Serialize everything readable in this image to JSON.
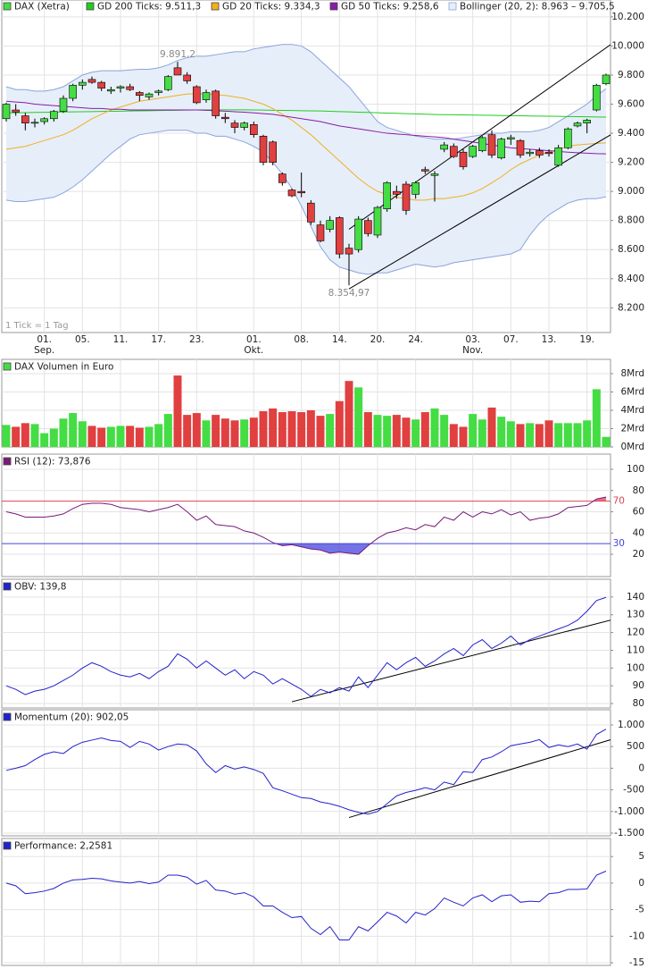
{
  "chart_data": [
    {
      "type": "candlestick",
      "name": "DAX (Xetra)",
      "up_color": "#44dd44",
      "down_color": "#e04040",
      "footnote": "1 Tick = 1 Tag",
      "categories": [
        null,
        null,
        null,
        null,
        "01.",
        null,
        null,
        null,
        "05.",
        null,
        null,
        null,
        "11.",
        null,
        null,
        null,
        "17.",
        null,
        null,
        null,
        "23.",
        null,
        null,
        null,
        null,
        null,
        "01.",
        null,
        null,
        null,
        null,
        "08.",
        null,
        null,
        null,
        "14.",
        null,
        null,
        null,
        "20.",
        null,
        null,
        null,
        "24.",
        null,
        null,
        null,
        null,
        null,
        "03.",
        null,
        null,
        null,
        "07.",
        null,
        null,
        null,
        "13.",
        null,
        null,
        null,
        "19.",
        null,
        null
      ],
      "month_labels": [
        {
          "category_index": 4,
          "label": "Sep."
        },
        {
          "category_index": 26,
          "label": "Okt."
        },
        {
          "category_index": 49,
          "label": "Nov."
        }
      ],
      "open": [
        9500,
        9560,
        9520,
        9470,
        9480,
        9500,
        9550,
        9640,
        9730,
        9770,
        9750,
        9690,
        9710,
        9720,
        9680,
        9650,
        9680,
        9700,
        9850,
        9800,
        9720,
        9630,
        9690,
        9510,
        9470,
        9440,
        9460,
        9380,
        9340,
        9120,
        9010,
        9000,
        8920,
        8770,
        8740,
        8820,
        8610,
        8600,
        8800,
        8700,
        8880,
        9000,
        9050,
        8980,
        9150,
        9110,
        9290,
        9310,
        9270,
        9240,
        9280,
        9390,
        9230,
        9360,
        9350,
        9260,
        9280,
        9270,
        9180,
        9300,
        9450,
        9470,
        9560,
        9740
      ],
      "high": [
        9610,
        9600,
        9540,
        9500,
        9510,
        9560,
        9660,
        9740,
        9770,
        9790,
        9760,
        9720,
        9730,
        9740,
        9690,
        9680,
        9700,
        9800,
        9891.2,
        9820,
        9730,
        9700,
        9700,
        9540,
        9490,
        9480,
        9480,
        9390,
        9350,
        9130,
        9020,
        9130,
        8940,
        8800,
        8830,
        8830,
        8640,
        8830,
        8820,
        8900,
        9070,
        9040,
        9070,
        9070,
        9170,
        9140,
        9340,
        9330,
        9290,
        9320,
        9380,
        9420,
        9370,
        9390,
        9360,
        9290,
        9300,
        9290,
        9320,
        9440,
        9480,
        9500,
        9740,
        9810
      ],
      "low": [
        9480,
        9520,
        9420,
        9440,
        9460,
        9480,
        9540,
        9620,
        9700,
        9740,
        9690,
        9670,
        9680,
        9690,
        9620,
        9630,
        9660,
        9690,
        9800,
        9740,
        9600,
        9610,
        9500,
        9470,
        9400,
        9420,
        9370,
        9180,
        9180,
        9040,
        8960,
        8960,
        8770,
        8650,
        8720,
        8540,
        8354.97,
        8580,
        8690,
        8680,
        8860,
        8950,
        8840,
        8950,
        9120,
        8930,
        9270,
        9230,
        9150,
        9230,
        9270,
        9230,
        9220,
        9320,
        9230,
        9240,
        9230,
        9240,
        9170,
        9290,
        9440,
        9400,
        9550,
        9730
      ],
      "close": [
        9600,
        9545,
        9470,
        9475,
        9500,
        9550,
        9640,
        9730,
        9750,
        9750,
        9710,
        9700,
        9720,
        9700,
        9660,
        9670,
        9690,
        9790,
        9800,
        9760,
        9610,
        9680,
        9520,
        9500,
        9440,
        9470,
        9390,
        9200,
        9200,
        9060,
        8970,
        8990,
        8790,
        8660,
        8800,
        8570,
        8570,
        8810,
        8710,
        8890,
        9060,
        8980,
        8870,
        9060,
        9140,
        9120,
        9320,
        9240,
        9170,
        9310,
        9370,
        9250,
        9360,
        9370,
        9250,
        9270,
        9250,
        9260,
        9300,
        9430,
        9470,
        9490,
        9730,
        9800
      ],
      "series": [
        {
          "name": "GD 200 Ticks: 9.511,3",
          "color": "#22cc22",
          "values": [
            9540,
            9541,
            9542,
            9543,
            9544,
            9545,
            9546,
            9547,
            9548,
            9549,
            9550,
            9551,
            9552,
            9553,
            9554,
            9555,
            9556,
            9557,
            9558,
            9559,
            9560,
            9561,
            9561,
            9561,
            9561,
            9561,
            9560,
            9559,
            9558,
            9557,
            9556,
            9555,
            9554,
            9553,
            9551,
            9549,
            9547,
            9545,
            9543,
            9541,
            9539,
            9537,
            9535,
            9533,
            9531,
            9529,
            9528,
            9527,
            9526,
            9525,
            9524,
            9523,
            9522,
            9521,
            9520,
            9519,
            9518,
            9517,
            9516,
            9515,
            9514,
            9513,
            9512,
            9511.3
          ]
        },
        {
          "name": "GD 20 Ticks: 9.334,3",
          "color": "#f0b020",
          "values": [
            9290,
            9300,
            9310,
            9330,
            9350,
            9370,
            9390,
            9420,
            9460,
            9500,
            9530,
            9560,
            9580,
            9600,
            9620,
            9630,
            9640,
            9650,
            9660,
            9670,
            9670,
            9670,
            9665,
            9660,
            9650,
            9640,
            9620,
            9600,
            9570,
            9530,
            9490,
            9440,
            9390,
            9330,
            9270,
            9210,
            9150,
            9090,
            9040,
            9000,
            8980,
            8960,
            8950,
            8940,
            8940,
            8950,
            8950,
            8960,
            8970,
            8990,
            9020,
            9060,
            9100,
            9150,
            9190,
            9220,
            9250,
            9270,
            9290,
            9310,
            9320,
            9325,
            9330,
            9334.3
          ]
        },
        {
          "name": "GD 50 Ticks: 9.258,6",
          "color": "#8a1aa8",
          "values": [
            9620,
            9615,
            9610,
            9600,
            9595,
            9590,
            9585,
            9580,
            9575,
            9570,
            9570,
            9565,
            9565,
            9560,
            9560,
            9560,
            9560,
            9560,
            9560,
            9560,
            9560,
            9558,
            9555,
            9552,
            9548,
            9545,
            9540,
            9535,
            9530,
            9520,
            9510,
            9500,
            9490,
            9480,
            9465,
            9450,
            9440,
            9430,
            9420,
            9410,
            9400,
            9395,
            9390,
            9385,
            9380,
            9375,
            9370,
            9360,
            9350,
            9340,
            9330,
            9320,
            9310,
            9300,
            9295,
            9290,
            9285,
            9280,
            9275,
            9270,
            9266,
            9263,
            9260,
            9258.6
          ]
        }
      ],
      "bollinger": {
        "name": "Bollinger (20, 2): 8.963 – 9.705,5",
        "color": "#8aa4dc",
        "fill": "#e6eef9",
        "upper": [
          9720,
          9700,
          9700,
          9690,
          9690,
          9700,
          9720,
          9760,
          9800,
          9820,
          9830,
          9830,
          9830,
          9835,
          9840,
          9840,
          9850,
          9870,
          9900,
          9920,
          9930,
          9930,
          9940,
          9950,
          9960,
          9960,
          9980,
          9990,
          10000,
          10010,
          10010,
          10000,
          9960,
          9900,
          9840,
          9780,
          9720,
          9640,
          9560,
          9480,
          9440,
          9420,
          9400,
          9380,
          9370,
          9360,
          9360,
          9360,
          9370,
          9380,
          9390,
          9400,
          9400,
          9410,
          9410,
          9410,
          9420,
          9440,
          9480,
          9520,
          9560,
          9600,
          9660,
          9705.5
        ],
        "lower": [
          8940,
          8930,
          8930,
          8940,
          8950,
          8960,
          8990,
          9030,
          9080,
          9140,
          9200,
          9260,
          9310,
          9360,
          9390,
          9400,
          9410,
          9420,
          9420,
          9420,
          9400,
          9400,
          9380,
          9380,
          9360,
          9340,
          9310,
          9270,
          9200,
          9120,
          9020,
          8900,
          8760,
          8620,
          8530,
          8480,
          8460,
          8440,
          8430,
          8440,
          8440,
          8460,
          8480,
          8500,
          8490,
          8480,
          8490,
          8510,
          8520,
          8530,
          8540,
          8550,
          8560,
          8570,
          8600,
          8700,
          8780,
          8840,
          8880,
          8920,
          8940,
          8950,
          8950,
          8963
        ]
      },
      "trendlines": [
        {
          "x": [
            36,
            63.5
          ],
          "y": [
            8740,
            10010
          ]
        },
        {
          "x": [
            36,
            63.5
          ],
          "y": [
            8330,
            9390
          ]
        }
      ],
      "annotations": [
        {
          "category_index": 18,
          "value": 9891.2,
          "label": "9.891,2"
        },
        {
          "category_index": 36,
          "value": 8354.97,
          "label": "8.354,97"
        }
      ],
      "ylim": [
        8030,
        10316
      ],
      "yticks": [
        {
          "value": 8200,
          "label": "8.200"
        },
        {
          "value": 8400,
          "label": "8.400"
        },
        {
          "value": 8600,
          "label": "8.600"
        },
        {
          "value": 8800,
          "label": "8.800"
        },
        {
          "value": 9000,
          "label": "9.000"
        },
        {
          "value": 9200,
          "label": "9.200"
        },
        {
          "value": 9400,
          "label": "9.400"
        },
        {
          "value": 9600,
          "label": "9.600"
        },
        {
          "value": 9800,
          "label": "9.800"
        },
        {
          "value": 10000,
          "label": "10.000"
        },
        {
          "value": 10200,
          "label": "10.200"
        }
      ],
      "grid": true
    },
    {
      "type": "bar",
      "title": "DAX Volumen in Euro",
      "color": "#44dd44",
      "values": [
        2.4,
        2.2,
        2.6,
        2.5,
        1.5,
        2.0,
        3.1,
        3.7,
        2.8,
        2.3,
        2.1,
        2.2,
        2.3,
        2.3,
        2.1,
        2.2,
        2.5,
        3.6,
        7.8,
        3.5,
        3.7,
        2.9,
        3.5,
        3.1,
        2.9,
        3.0,
        3.2,
        3.9,
        4.2,
        3.8,
        3.9,
        3.8,
        4.0,
        3.4,
        3.6,
        5.0,
        7.2,
        6.5,
        3.8,
        3.5,
        3.4,
        3.5,
        3.2,
        3.0,
        3.8,
        4.2,
        3.5,
        2.5,
        2.2,
        3.6,
        3.0,
        4.3,
        3.3,
        2.8,
        2.5,
        2.6,
        2.5,
        2.9,
        2.6,
        2.6,
        2.6,
        2.9,
        6.3,
        1.1
      ],
      "ylim": [
        0,
        9.56
      ],
      "yticks": [
        {
          "value": 0,
          "label": "0Mrd"
        },
        {
          "value": 2,
          "label": "2Mrd"
        },
        {
          "value": 4,
          "label": "4Mrd"
        },
        {
          "value": 6,
          "label": "6Mrd"
        },
        {
          "value": 8,
          "label": "8Mrd"
        }
      ],
      "grid": true
    },
    {
      "type": "line",
      "title": "RSI (12): 73,876",
      "color": "#7a1a7a",
      "values": [
        60,
        58,
        55,
        55,
        55,
        56,
        58,
        63,
        67,
        68,
        68,
        67,
        64,
        63,
        62,
        60,
        62,
        64,
        67,
        60,
        52,
        56,
        48,
        47,
        46,
        42,
        40,
        36,
        31,
        28,
        29,
        27,
        25,
        24,
        21,
        22,
        21,
        20,
        28,
        35,
        40,
        42,
        45,
        43,
        48,
        46,
        55,
        52,
        60,
        55,
        60,
        58,
        62,
        57,
        60,
        52,
        54,
        55,
        58,
        64,
        65,
        66,
        72,
        73.876
      ],
      "levels": [
        {
          "value": 70,
          "color": "#dd4455"
        },
        {
          "value": 30,
          "color": "#4444dd"
        }
      ],
      "ylim": [
        -1,
        114.3
      ],
      "yticks": [
        20,
        40,
        60,
        80,
        100
      ],
      "grid": true
    },
    {
      "type": "line",
      "title": "OBV: 139,8",
      "color": "#2222cc",
      "values": [
        90,
        88,
        85,
        87,
        88,
        90,
        93,
        96,
        100,
        103,
        101,
        98,
        96,
        95,
        97,
        94,
        98,
        101,
        108,
        105,
        100,
        104,
        100,
        96,
        99,
        94,
        98,
        96,
        91,
        94,
        91,
        88,
        84,
        88,
        86,
        89,
        87,
        95,
        89,
        96,
        103,
        99,
        103,
        106,
        101,
        104,
        108,
        111,
        107,
        113,
        116,
        111,
        114,
        118,
        113,
        116,
        118,
        120,
        122,
        124,
        127,
        132,
        138,
        139.8
      ],
      "trendlines": [
        {
          "x": [
            30,
            63.5
          ],
          "y": [
            81,
            127
          ]
        }
      ],
      "ylim": [
        77.5,
        150
      ],
      "yticks": [
        80,
        90,
        100,
        110,
        120,
        130,
        140
      ],
      "grid": true
    },
    {
      "type": "line",
      "title": "Momentum (20): 902,05",
      "color": "#2222cc",
      "values": [
        -50,
        0,
        60,
        200,
        320,
        380,
        340,
        500,
        600,
        650,
        700,
        640,
        620,
        480,
        620,
        560,
        420,
        500,
        560,
        540,
        400,
        100,
        -100,
        60,
        -20,
        30,
        -30,
        -120,
        -450,
        -520,
        -600,
        -680,
        -700,
        -780,
        -820,
        -880,
        -960,
        -1020,
        -1060,
        -1000,
        -820,
        -640,
        -560,
        -510,
        -450,
        -500,
        -320,
        -380,
        -80,
        -100,
        200,
        260,
        380,
        520,
        560,
        600,
        660,
        480,
        540,
        500,
        560,
        440,
        780,
        902.05
      ],
      "trendlines": [
        {
          "x": [
            36,
            63.5
          ],
          "y": [
            -1140,
            660
          ]
        }
      ],
      "ylim": [
        -1562,
        1351
      ],
      "yticks": [
        {
          "value": -1500,
          "label": "-1.500"
        },
        {
          "value": -1000,
          "label": "-1.000"
        },
        -500,
        0,
        500,
        {
          "value": 1000,
          "label": "1.000"
        }
      ],
      "grid": true
    },
    {
      "type": "line",
      "title": "Performance: 2,2581",
      "color": "#2222cc",
      "values": [
        0,
        -0.5,
        -2,
        -1.8,
        -1.5,
        -1,
        0,
        0.6,
        0.7,
        0.9,
        0.8,
        0.4,
        0.2,
        0,
        0.3,
        -0.1,
        0.2,
        1.5,
        1.5,
        1.1,
        -0.2,
        0.5,
        -1.3,
        -1.5,
        -2.1,
        -1.8,
        -2.6,
        -4.3,
        -4.3,
        -5.5,
        -6.5,
        -6.3,
        -8.5,
        -9.7,
        -8.2,
        -10.7,
        -10.7,
        -8.2,
        -9,
        -7.3,
        -5.5,
        -6.2,
        -7.5,
        -5.5,
        -6,
        -4.8,
        -2.8,
        -3.6,
        -4.3,
        -2.8,
        -2.2,
        -3.5,
        -2.4,
        -2.2,
        -3.6,
        -3.4,
        -3.5,
        -2,
        -1.8,
        -1.2,
        -1.2,
        -1.1,
        1.5,
        2.2581
      ],
      "ylim": [
        -15.5,
        8.4
      ],
      "yticks": [
        -15,
        -10,
        -5,
        0,
        5
      ],
      "grid": true
    }
  ]
}
